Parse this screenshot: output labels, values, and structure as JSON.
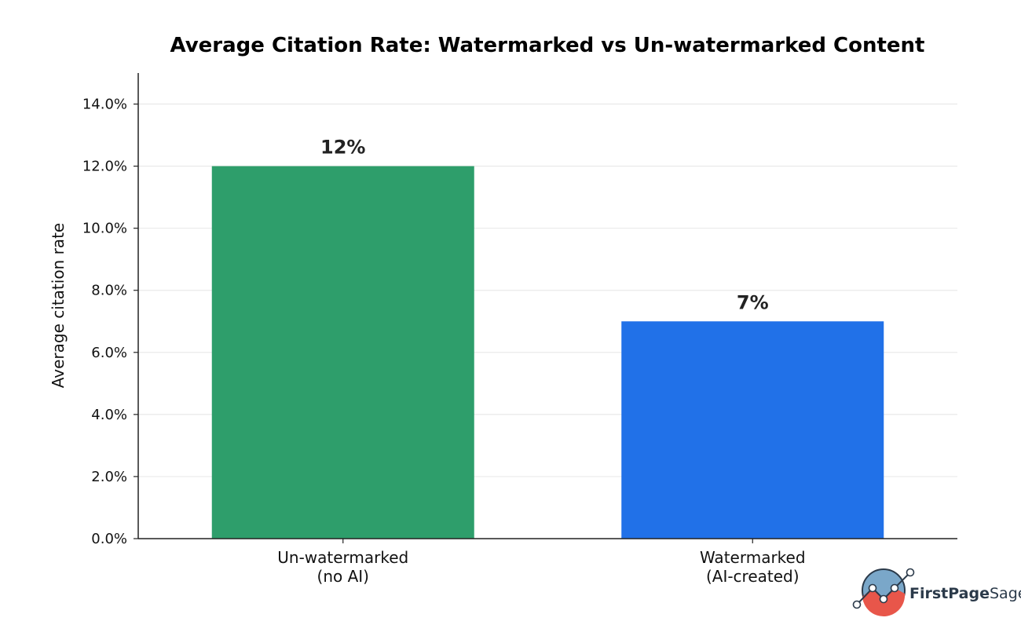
{
  "chart_data": {
    "type": "bar",
    "title": "Average Citation Rate: Watermarked vs Un-watermarked Content",
    "ylabel": "Average citation rate",
    "xlabel": "",
    "ylim": [
      0,
      15
    ],
    "yticks": [
      0,
      2,
      4,
      6,
      8,
      10,
      12,
      14
    ],
    "ytick_labels": [
      "0.0%",
      "2.0%",
      "4.0%",
      "6.0%",
      "8.0%",
      "10.0%",
      "12.0%",
      "14.0%"
    ],
    "grid": "horizontal",
    "categories": [
      [
        "Un-watermarked",
        "(no AI)"
      ],
      [
        "Watermarked",
        "(AI-created)"
      ]
    ],
    "values": [
      12,
      7
    ],
    "data_labels": [
      "12%",
      "7%"
    ],
    "colors": [
      "#2e9e6b",
      "#2171e8"
    ]
  },
  "logo": {
    "text_bold": "FirstPage",
    "text_light": "Sage",
    "icon": "chart-globe-icon",
    "colors": {
      "globe": "#7aa7c9",
      "wave": "#e8564a",
      "outline": "#2b3a4a"
    }
  }
}
